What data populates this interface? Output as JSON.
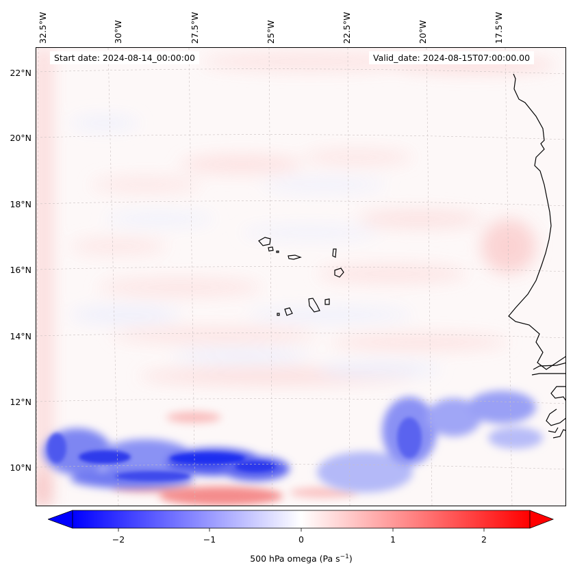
{
  "map": {
    "start_date": "Start date: 2024-08-14_00:00:00",
    "valid_date": "Valid_date: 2024-08-15T07:00:00.00",
    "lon_labels": [
      "32.5°W",
      "30°W",
      "27.5°W",
      "25°W",
      "22.5°W",
      "20°W",
      "17.5°W"
    ],
    "lat_labels": [
      "22°N",
      "20°N",
      "18°N",
      "16°N",
      "14°N",
      "12°N",
      "10°N"
    ],
    "features": [
      "Cape Verde islands",
      "West African coastline",
      "negative omega band near 10–12°N"
    ],
    "colors": {
      "negative": "#0000ff",
      "zero": "#ffffff",
      "positive": "#ff0000",
      "coast": "#000000"
    }
  },
  "colorbar": {
    "variable": "500 hPa omega (Pa s",
    "unit_exp": "−1",
    "unit_close": ")",
    "ticks": [
      "−2",
      "−1",
      "0",
      "1",
      "2"
    ],
    "tick_values": [
      -2,
      -1,
      0,
      1,
      2
    ],
    "range": [
      -2.5,
      2.5
    ],
    "extend": "both",
    "cmap": "bwr"
  }
}
